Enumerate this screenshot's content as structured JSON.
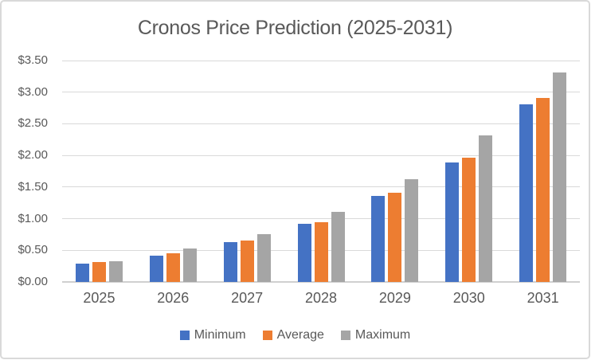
{
  "colors": {
    "minimum": "#4472C4",
    "average": "#ED7D31",
    "maximum": "#A5A5A5",
    "text": "#595959",
    "gridline": "#D9D9D9",
    "axis_line": "#D0D0D0",
    "frame_border": "#D9D9D9",
    "background": "#FFFFFF"
  },
  "chart_data": {
    "type": "bar",
    "title": "Cronos Price Prediction (2025-2031)",
    "xlabel": "",
    "ylabel": "",
    "categories": [
      "2025",
      "2026",
      "2027",
      "2028",
      "2029",
      "2030",
      "2031"
    ],
    "series": [
      {
        "name": "Minimum",
        "color": "#4472C4",
        "values": [
          0.29,
          0.42,
          0.63,
          0.92,
          1.36,
          1.89,
          2.81
        ]
      },
      {
        "name": "Average",
        "color": "#ED7D31",
        "values": [
          0.31,
          0.45,
          0.66,
          0.95,
          1.41,
          1.96,
          2.91
        ]
      },
      {
        "name": "Maximum",
        "color": "#A5A5A5",
        "values": [
          0.33,
          0.53,
          0.76,
          1.11,
          1.63,
          2.32,
          3.31
        ]
      }
    ],
    "ylim": [
      0,
      3.5
    ],
    "y_ticks": [
      {
        "v": 0.0,
        "label": "$0.00"
      },
      {
        "v": 0.5,
        "label": "$0.50"
      },
      {
        "v": 1.0,
        "label": "$1.00"
      },
      {
        "v": 1.5,
        "label": "$1.50"
      },
      {
        "v": 2.0,
        "label": "$2.00"
      },
      {
        "v": 2.5,
        "label": "$2.50"
      },
      {
        "v": 3.0,
        "label": "$3.00"
      },
      {
        "v": 3.5,
        "label": "$3.50"
      }
    ],
    "grid": true,
    "legend_position": "bottom"
  }
}
